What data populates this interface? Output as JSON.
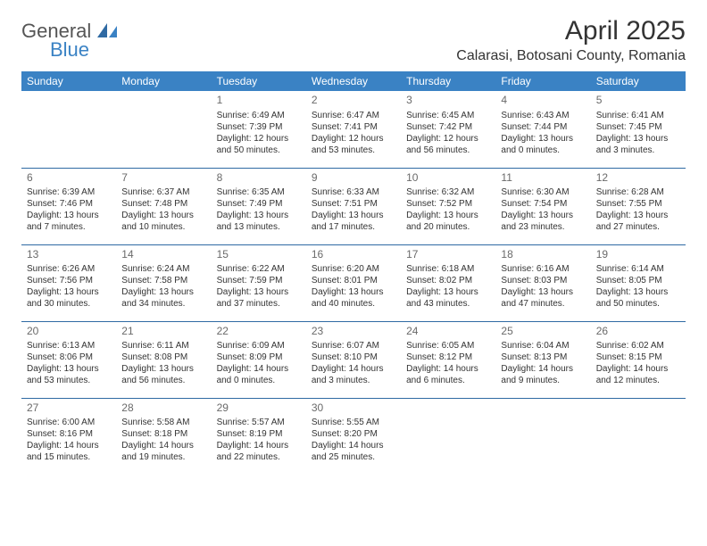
{
  "logo": {
    "general": "General",
    "blue": "Blue"
  },
  "title": "April 2025",
  "location": "Calarasi, Botosani County, Romania",
  "colors": {
    "header_bg": "#3a82c4",
    "header_text": "#ffffff",
    "row_sep": "#2f6aa3",
    "daynum": "#6a6a6a",
    "text": "#333333",
    "logo_blue": "#3a82c4",
    "logo_gray": "#555555",
    "background": "#ffffff"
  },
  "dayNames": [
    "Sunday",
    "Monday",
    "Tuesday",
    "Wednesday",
    "Thursday",
    "Friday",
    "Saturday"
  ],
  "weeks": [
    [
      null,
      null,
      {
        "n": "1",
        "sr": "Sunrise: 6:49 AM",
        "ss": "Sunset: 7:39 PM",
        "d1": "Daylight: 12 hours",
        "d2": "and 50 minutes."
      },
      {
        "n": "2",
        "sr": "Sunrise: 6:47 AM",
        "ss": "Sunset: 7:41 PM",
        "d1": "Daylight: 12 hours",
        "d2": "and 53 minutes."
      },
      {
        "n": "3",
        "sr": "Sunrise: 6:45 AM",
        "ss": "Sunset: 7:42 PM",
        "d1": "Daylight: 12 hours",
        "d2": "and 56 minutes."
      },
      {
        "n": "4",
        "sr": "Sunrise: 6:43 AM",
        "ss": "Sunset: 7:44 PM",
        "d1": "Daylight: 13 hours",
        "d2": "and 0 minutes."
      },
      {
        "n": "5",
        "sr": "Sunrise: 6:41 AM",
        "ss": "Sunset: 7:45 PM",
        "d1": "Daylight: 13 hours",
        "d2": "and 3 minutes."
      }
    ],
    [
      {
        "n": "6",
        "sr": "Sunrise: 6:39 AM",
        "ss": "Sunset: 7:46 PM",
        "d1": "Daylight: 13 hours",
        "d2": "and 7 minutes."
      },
      {
        "n": "7",
        "sr": "Sunrise: 6:37 AM",
        "ss": "Sunset: 7:48 PM",
        "d1": "Daylight: 13 hours",
        "d2": "and 10 minutes."
      },
      {
        "n": "8",
        "sr": "Sunrise: 6:35 AM",
        "ss": "Sunset: 7:49 PM",
        "d1": "Daylight: 13 hours",
        "d2": "and 13 minutes."
      },
      {
        "n": "9",
        "sr": "Sunrise: 6:33 AM",
        "ss": "Sunset: 7:51 PM",
        "d1": "Daylight: 13 hours",
        "d2": "and 17 minutes."
      },
      {
        "n": "10",
        "sr": "Sunrise: 6:32 AM",
        "ss": "Sunset: 7:52 PM",
        "d1": "Daylight: 13 hours",
        "d2": "and 20 minutes."
      },
      {
        "n": "11",
        "sr": "Sunrise: 6:30 AM",
        "ss": "Sunset: 7:54 PM",
        "d1": "Daylight: 13 hours",
        "d2": "and 23 minutes."
      },
      {
        "n": "12",
        "sr": "Sunrise: 6:28 AM",
        "ss": "Sunset: 7:55 PM",
        "d1": "Daylight: 13 hours",
        "d2": "and 27 minutes."
      }
    ],
    [
      {
        "n": "13",
        "sr": "Sunrise: 6:26 AM",
        "ss": "Sunset: 7:56 PM",
        "d1": "Daylight: 13 hours",
        "d2": "and 30 minutes."
      },
      {
        "n": "14",
        "sr": "Sunrise: 6:24 AM",
        "ss": "Sunset: 7:58 PM",
        "d1": "Daylight: 13 hours",
        "d2": "and 34 minutes."
      },
      {
        "n": "15",
        "sr": "Sunrise: 6:22 AM",
        "ss": "Sunset: 7:59 PM",
        "d1": "Daylight: 13 hours",
        "d2": "and 37 minutes."
      },
      {
        "n": "16",
        "sr": "Sunrise: 6:20 AM",
        "ss": "Sunset: 8:01 PM",
        "d1": "Daylight: 13 hours",
        "d2": "and 40 minutes."
      },
      {
        "n": "17",
        "sr": "Sunrise: 6:18 AM",
        "ss": "Sunset: 8:02 PM",
        "d1": "Daylight: 13 hours",
        "d2": "and 43 minutes."
      },
      {
        "n": "18",
        "sr": "Sunrise: 6:16 AM",
        "ss": "Sunset: 8:03 PM",
        "d1": "Daylight: 13 hours",
        "d2": "and 47 minutes."
      },
      {
        "n": "19",
        "sr": "Sunrise: 6:14 AM",
        "ss": "Sunset: 8:05 PM",
        "d1": "Daylight: 13 hours",
        "d2": "and 50 minutes."
      }
    ],
    [
      {
        "n": "20",
        "sr": "Sunrise: 6:13 AM",
        "ss": "Sunset: 8:06 PM",
        "d1": "Daylight: 13 hours",
        "d2": "and 53 minutes."
      },
      {
        "n": "21",
        "sr": "Sunrise: 6:11 AM",
        "ss": "Sunset: 8:08 PM",
        "d1": "Daylight: 13 hours",
        "d2": "and 56 minutes."
      },
      {
        "n": "22",
        "sr": "Sunrise: 6:09 AM",
        "ss": "Sunset: 8:09 PM",
        "d1": "Daylight: 14 hours",
        "d2": "and 0 minutes."
      },
      {
        "n": "23",
        "sr": "Sunrise: 6:07 AM",
        "ss": "Sunset: 8:10 PM",
        "d1": "Daylight: 14 hours",
        "d2": "and 3 minutes."
      },
      {
        "n": "24",
        "sr": "Sunrise: 6:05 AM",
        "ss": "Sunset: 8:12 PM",
        "d1": "Daylight: 14 hours",
        "d2": "and 6 minutes."
      },
      {
        "n": "25",
        "sr": "Sunrise: 6:04 AM",
        "ss": "Sunset: 8:13 PM",
        "d1": "Daylight: 14 hours",
        "d2": "and 9 minutes."
      },
      {
        "n": "26",
        "sr": "Sunrise: 6:02 AM",
        "ss": "Sunset: 8:15 PM",
        "d1": "Daylight: 14 hours",
        "d2": "and 12 minutes."
      }
    ],
    [
      {
        "n": "27",
        "sr": "Sunrise: 6:00 AM",
        "ss": "Sunset: 8:16 PM",
        "d1": "Daylight: 14 hours",
        "d2": "and 15 minutes."
      },
      {
        "n": "28",
        "sr": "Sunrise: 5:58 AM",
        "ss": "Sunset: 8:18 PM",
        "d1": "Daylight: 14 hours",
        "d2": "and 19 minutes."
      },
      {
        "n": "29",
        "sr": "Sunrise: 5:57 AM",
        "ss": "Sunset: 8:19 PM",
        "d1": "Daylight: 14 hours",
        "d2": "and 22 minutes."
      },
      {
        "n": "30",
        "sr": "Sunrise: 5:55 AM",
        "ss": "Sunset: 8:20 PM",
        "d1": "Daylight: 14 hours",
        "d2": "and 25 minutes."
      },
      null,
      null,
      null
    ]
  ]
}
